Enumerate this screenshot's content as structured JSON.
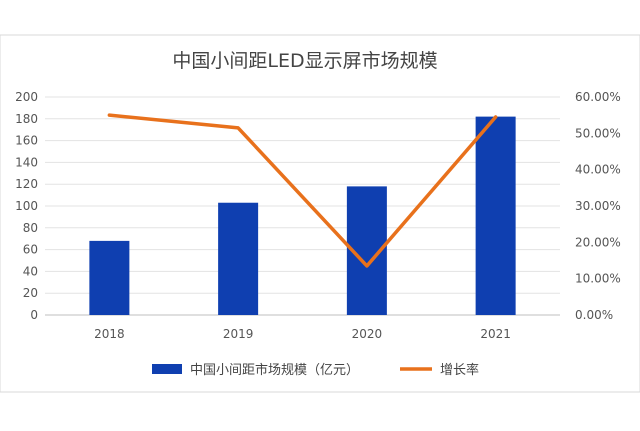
{
  "chart_data": {
    "type": "bar",
    "title": "中国小间距LED显示屏市场规模",
    "categories": [
      "2018",
      "2019",
      "2020",
      "2021"
    ],
    "series": [
      {
        "name": "中国小间距市场规模（亿元）",
        "kind": "bar",
        "axis": "left",
        "values": [
          68,
          103,
          118,
          182
        ],
        "color": "#0f3fb0"
      },
      {
        "name": "增长率",
        "kind": "line",
        "axis": "right",
        "values": [
          0.55,
          0.515,
          0.135,
          0.545
        ],
        "color": "#e8711c"
      }
    ],
    "y_left": {
      "range": [
        0,
        200
      ],
      "ticks": [
        "0",
        "20",
        "40",
        "60",
        "80",
        "100",
        "120",
        "140",
        "160",
        "180",
        "200"
      ]
    },
    "y_right": {
      "range": [
        0,
        0.6
      ],
      "ticks": [
        "0.00%",
        "10.00%",
        "20.00%",
        "30.00%",
        "40.00%",
        "50.00%",
        "60.00%"
      ]
    },
    "grid": true,
    "legend_position": "bottom"
  }
}
